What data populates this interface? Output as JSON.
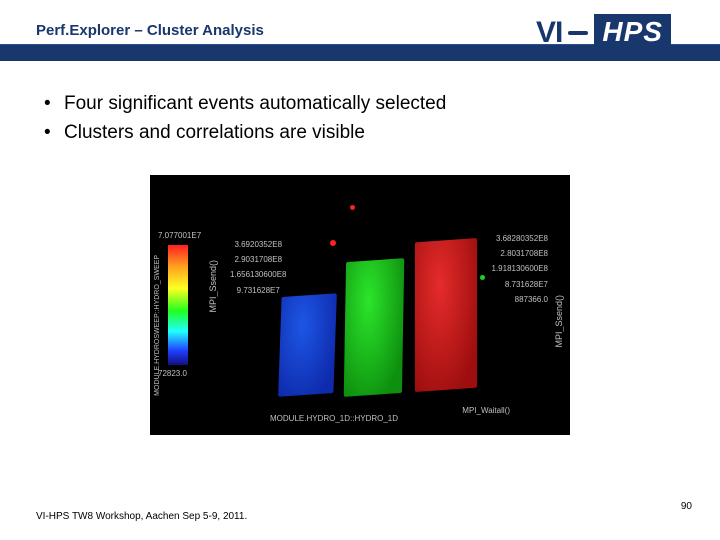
{
  "header": {
    "title": "Perf.Explorer – Cluster Analysis",
    "band_color": "#18376d",
    "logo": {
      "vi": "VI",
      "hps": "HPS"
    }
  },
  "bullets": [
    "Four significant events automatically selected",
    "Clusters and correlations are visible"
  ],
  "figure": {
    "type": "scatter3d",
    "background_color": "#000000",
    "colorbar": {
      "top_value": "7.077001E7",
      "bottom_value": "72823.0",
      "label": "MODULE.HYDROSWEEP::HYDRO_SWEEP",
      "gradient": [
        "#ff2020",
        "#ffa020",
        "#ffff20",
        "#20ff20",
        "#20ffff",
        "#2040ff",
        "#101080"
      ]
    },
    "clusters": [
      {
        "name": "cluster-blue",
        "color": "#1030c0",
        "approx_count": 300
      },
      {
        "name": "cluster-green",
        "color": "#10a010",
        "approx_count": 350
      },
      {
        "name": "cluster-red",
        "color": "#b01010",
        "approx_count": 380
      }
    ],
    "axis_left": {
      "ticks": [
        "3.6920352E8",
        "2.9031708E8",
        "1.656130600E8",
        "9.731628E7"
      ],
      "label": "MPI_Ssend()"
    },
    "axis_right": {
      "ticks": [
        "3.68280352E8",
        "2.8031708E8",
        "1.918130600E8",
        "8.731628E7",
        "887366.0"
      ],
      "label": "MPI_Ssend()"
    },
    "floor_left_label": "MODULE.HYDRO_1D::HYDRO_1D",
    "floor_right_label": "MPI_Waitall()"
  },
  "footer": {
    "text": "VI-HPS TW8 Workshop, Aachen Sep 5-9, 2011.",
    "page": "90"
  }
}
